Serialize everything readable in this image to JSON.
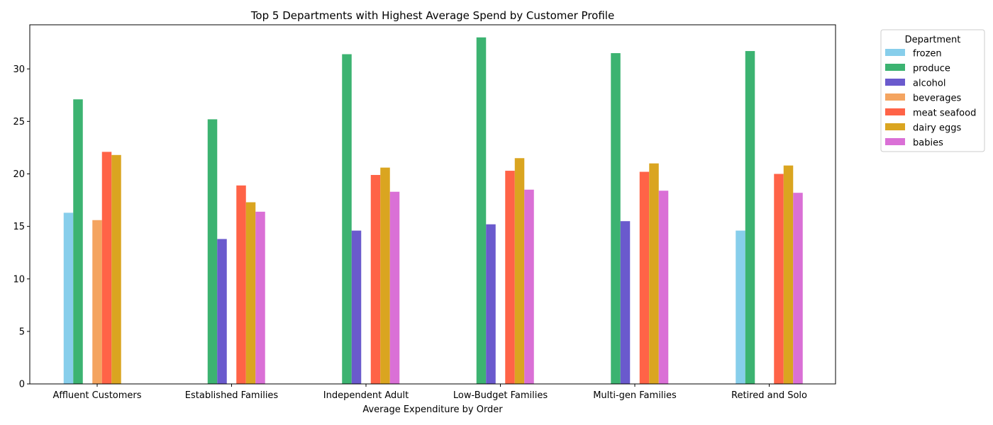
{
  "chart_data": {
    "type": "bar",
    "title": "Top 5 Departments with Highest Average Spend by Customer Profile",
    "xlabel": "Average Expenditure by Order",
    "ylabel": "",
    "ylim": [
      0,
      34.2
    ],
    "yticks": [
      0,
      5,
      10,
      15,
      20,
      25,
      30
    ],
    "grid": false,
    "legend": {
      "title": "Department",
      "placement": "outside-top-right"
    },
    "categories": [
      "Affluent Customers",
      "Established Families",
      "Independent Adult",
      "Low-Budget Families",
      "Multi-gen Families",
      "Retired and Solo"
    ],
    "series": [
      {
        "name": "frozen",
        "color": "#87ceeb",
        "values": [
          16.3,
          null,
          null,
          null,
          null,
          14.6
        ]
      },
      {
        "name": "produce",
        "color": "#3cb371",
        "values": [
          27.1,
          25.2,
          31.4,
          33.0,
          31.5,
          31.7
        ]
      },
      {
        "name": "alcohol",
        "color": "#6a5acd",
        "values": [
          null,
          13.8,
          14.6,
          15.2,
          15.5,
          null
        ]
      },
      {
        "name": "beverages",
        "color": "#f4a460",
        "values": [
          15.6,
          null,
          null,
          null,
          null,
          null
        ]
      },
      {
        "name": "meat seafood",
        "color": "#ff6347",
        "values": [
          22.1,
          18.9,
          19.9,
          20.3,
          20.2,
          20.0
        ]
      },
      {
        "name": "dairy eggs",
        "color": "#daa520",
        "values": [
          21.8,
          17.3,
          20.6,
          21.5,
          21.0,
          20.8
        ]
      },
      {
        "name": "babies",
        "color": "#da70d6",
        "values": [
          null,
          16.4,
          18.3,
          18.5,
          18.4,
          18.2
        ]
      }
    ]
  }
}
